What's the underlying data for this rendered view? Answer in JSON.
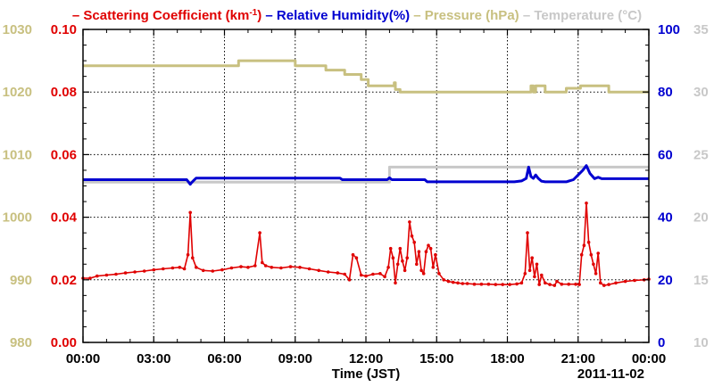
{
  "chart_data": {
    "type": "line",
    "legend": [
      {
        "prefix": "– ",
        "text": "Scattering Coefficient (km",
        "sup": "-1",
        "suffix": ")",
        "color": "#e00000"
      },
      {
        "prefix": "– ",
        "text": "Relative Humidity(%)",
        "color": "#0000d0"
      },
      {
        "prefix": "– ",
        "text": "Pressure (hPa)",
        "color": "#c8c080"
      },
      {
        "prefix": "– ",
        "text": "Temperature (°C)",
        "color": "#c8c8c8"
      }
    ],
    "xlabel": "Time (JST)",
    "date_label": "2011-11-02",
    "x_ticks": [
      "00:00",
      "03:00",
      "06:00",
      "09:00",
      "12:00",
      "15:00",
      "18:00",
      "21:00",
      "00:00"
    ],
    "xlim": [
      0,
      24
    ],
    "axes": {
      "pressure": {
        "ticks": [
          "980",
          "990",
          "1000",
          "1010",
          "1020",
          "1030"
        ],
        "range": [
          980,
          1030
        ],
        "color": "#c8c080"
      },
      "scattering": {
        "ticks": [
          "0.00",
          "0.02",
          "0.04",
          "0.06",
          "0.08",
          "0.10"
        ],
        "range": [
          0,
          0.1
        ],
        "color": "#e00000"
      },
      "humidity": {
        "ticks": [
          "0",
          "20",
          "40",
          "60",
          "80",
          "100"
        ],
        "range": [
          0,
          100
        ],
        "color": "#0000d0"
      },
      "temperature": {
        "ticks": [
          "10",
          "15",
          "20",
          "25",
          "30",
          "35"
        ],
        "range": [
          10,
          35
        ],
        "color": "#c8c8c8"
      }
    },
    "grid": true,
    "series": [
      {
        "name": "Pressure (hPa)",
        "axis": "pressure",
        "color": "#c8c080",
        "step": true,
        "x": [
          0,
          6.4,
          6.6,
          8.8,
          9.0,
          10.1,
          10.3,
          11.0,
          11.1,
          11.7,
          11.8,
          12.0,
          12.1,
          13.1,
          13.2,
          13.25,
          13.35,
          13.45,
          18.9,
          19.0,
          19.1,
          19.2,
          19.5,
          19.6,
          20.4,
          20.5,
          21.0,
          21.1,
          22.2,
          22.3,
          24
        ],
        "values": [
          1024.2,
          1024.2,
          1025,
          1025,
          1024.2,
          1024.2,
          1023.5,
          1023.5,
          1022.8,
          1022.8,
          1022,
          1022,
          1021,
          1021,
          1021.5,
          1020.4,
          1020.4,
          1020,
          1020,
          1021,
          1020,
          1021,
          1021,
          1020,
          1020,
          1020.6,
          1020.6,
          1021,
          1021,
          1020,
          1020
        ]
      },
      {
        "name": "Temperature (°C)",
        "axis": "temperature",
        "color": "#c8c8c8",
        "step": true,
        "x": [
          0,
          12.9,
          13.0,
          24
        ],
        "values": [
          22.8,
          22.8,
          24.0,
          24.0
        ]
      },
      {
        "name": "Relative Humidity(%)",
        "axis": "humidity",
        "color": "#0000d0",
        "x": [
          0,
          4.3,
          4.4,
          4.55,
          4.6,
          4.7,
          4.8,
          5.5,
          10.9,
          11.0,
          12.9,
          13.0,
          13.1,
          14.5,
          14.6,
          15.0,
          15.8,
          16.0,
          18.3,
          18.6,
          18.8,
          18.9,
          19.0,
          19.1,
          19.2,
          19.3,
          19.45,
          19.6,
          20.5,
          20.8,
          21.0,
          21.2,
          21.35,
          21.5,
          21.7,
          21.85,
          22.0,
          22.2,
          24
        ],
        "values": [
          52,
          52,
          52,
          50.5,
          51,
          51.8,
          52.5,
          52.5,
          52.5,
          52,
          52,
          52.6,
          52,
          52,
          51.3,
          51.3,
          51.3,
          51.3,
          51.3,
          51.6,
          52.4,
          56,
          53,
          52.4,
          53.5,
          52.5,
          51.5,
          51.3,
          51.3,
          52,
          53.5,
          55,
          56.5,
          54,
          52.3,
          52.8,
          52.3,
          52.3,
          52.3
        ]
      },
      {
        "name": "Scattering Coefficient (km-1)",
        "axis": "scattering",
        "color": "#e00000",
        "markers": true,
        "x": [
          0,
          0.3,
          0.6,
          1.0,
          1.4,
          1.8,
          2.2,
          2.6,
          3.0,
          3.4,
          3.8,
          4.1,
          4.3,
          4.45,
          4.55,
          4.65,
          4.8,
          5.1,
          5.5,
          5.9,
          6.3,
          6.7,
          7.0,
          7.3,
          7.5,
          7.6,
          7.75,
          8.0,
          8.4,
          8.8,
          9.2,
          9.6,
          10.0,
          10.4,
          10.8,
          11.1,
          11.3,
          11.45,
          11.6,
          11.8,
          12.0,
          12.3,
          12.6,
          12.8,
          12.95,
          13.05,
          13.15,
          13.25,
          13.35,
          13.45,
          13.55,
          13.65,
          13.75,
          13.85,
          13.95,
          14.05,
          14.15,
          14.25,
          14.35,
          14.45,
          14.55,
          14.65,
          14.75,
          14.85,
          14.95,
          15.1,
          15.3,
          15.5,
          15.7,
          15.9,
          16.1,
          16.3,
          16.6,
          16.9,
          17.2,
          17.5,
          17.8,
          18.1,
          18.4,
          18.6,
          18.75,
          18.85,
          18.95,
          19.05,
          19.15,
          19.25,
          19.35,
          19.45,
          19.6,
          19.8,
          20.0,
          20.1,
          20.3,
          20.6,
          20.9,
          21.05,
          21.15,
          21.25,
          21.35,
          21.45,
          21.55,
          21.65,
          21.75,
          21.85,
          21.95,
          22.1,
          22.3,
          22.6,
          23.0,
          23.4,
          23.8,
          24
        ],
        "values": [
          0.0205,
          0.0205,
          0.0212,
          0.0215,
          0.0218,
          0.0222,
          0.0225,
          0.0228,
          0.0232,
          0.0235,
          0.0238,
          0.024,
          0.0235,
          0.028,
          0.0415,
          0.027,
          0.024,
          0.023,
          0.0228,
          0.0232,
          0.0238,
          0.0242,
          0.024,
          0.0245,
          0.035,
          0.0255,
          0.0245,
          0.024,
          0.0238,
          0.0242,
          0.024,
          0.0235,
          0.023,
          0.0225,
          0.0222,
          0.0218,
          0.02,
          0.028,
          0.027,
          0.0215,
          0.0212,
          0.0218,
          0.022,
          0.021,
          0.024,
          0.03,
          0.027,
          0.019,
          0.025,
          0.03,
          0.026,
          0.023,
          0.027,
          0.0385,
          0.034,
          0.032,
          0.025,
          0.029,
          0.023,
          0.022,
          0.029,
          0.031,
          0.03,
          0.024,
          0.028,
          0.022,
          0.02,
          0.0195,
          0.0192,
          0.019,
          0.0188,
          0.0188,
          0.0186,
          0.0186,
          0.0186,
          0.0185,
          0.0185,
          0.0185,
          0.0187,
          0.019,
          0.022,
          0.035,
          0.023,
          0.027,
          0.021,
          0.025,
          0.0185,
          0.0215,
          0.019,
          0.0185,
          0.0182,
          0.0195,
          0.0186,
          0.0186,
          0.0186,
          0.0185,
          0.028,
          0.031,
          0.0445,
          0.032,
          0.028,
          0.025,
          0.022,
          0.0285,
          0.019,
          0.0182,
          0.0185,
          0.019,
          0.0195,
          0.0198,
          0.02,
          0.0202
        ]
      }
    ]
  }
}
